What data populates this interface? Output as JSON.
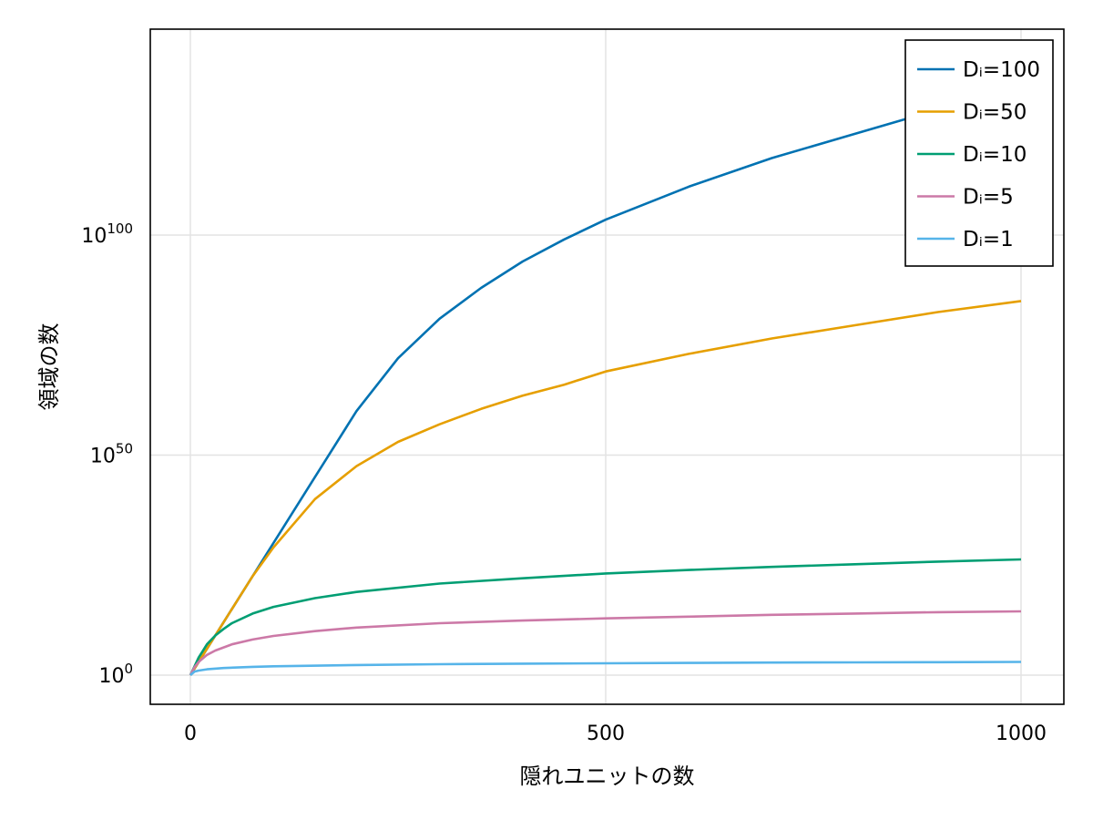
{
  "chart_data": {
    "type": "line",
    "xlabel": "隠れユニットの数",
    "ylabel": "領域の数",
    "xlim": [
      0,
      1000
    ],
    "ylim_exponent": [
      -6.5,
      147
    ],
    "y_scale": "log10",
    "grid": true,
    "legend_position": "top-right",
    "x_ticks": [
      {
        "value": 0,
        "label": "0"
      },
      {
        "value": 500,
        "label": "500"
      },
      {
        "value": 1000,
        "label": "1000"
      }
    ],
    "y_ticks": [
      {
        "exponent": 0,
        "base": "10",
        "sup": "0"
      },
      {
        "exponent": 50,
        "base": "10",
        "sup": "50"
      },
      {
        "exponent": 100,
        "base": "10",
        "sup": "100"
      }
    ],
    "series": [
      {
        "name": "Dᵢ=100",
        "color": "#0072b2",
        "x": [
          0,
          25,
          50,
          75,
          100,
          150,
          200,
          250,
          300,
          350,
          400,
          450,
          500,
          600,
          700,
          800,
          900,
          1000
        ],
        "log10_y": [
          0,
          7.5,
          15,
          22.5,
          30,
          45,
          60,
          72,
          81,
          88,
          94,
          99,
          103.5,
          111,
          117.5,
          123,
          128.5,
          133.5
        ]
      },
      {
        "name": "Dᵢ=50",
        "color": "#e69f00",
        "x": [
          0,
          25,
          50,
          75,
          100,
          150,
          200,
          250,
          300,
          350,
          400,
          450,
          500,
          600,
          700,
          800,
          900,
          1000
        ],
        "log10_y": [
          0,
          7.5,
          15,
          22.5,
          29,
          40,
          47.5,
          53,
          57,
          60.5,
          63.5,
          66,
          69,
          73,
          76.5,
          79.5,
          82.5,
          85
        ]
      },
      {
        "name": "Dᵢ=10",
        "color": "#009e73",
        "x": [
          0,
          5,
          10,
          15,
          20,
          30,
          40,
          50,
          75,
          100,
          150,
          200,
          300,
          400,
          500,
          600,
          700,
          800,
          900,
          1000
        ],
        "log10_y": [
          0,
          2,
          4,
          5.5,
          7,
          9,
          10.5,
          11.8,
          14,
          15.5,
          17.5,
          18.9,
          20.8,
          22,
          23.1,
          23.9,
          24.6,
          25.2,
          25.8,
          26.3
        ]
      },
      {
        "name": "Dᵢ=5",
        "color": "#cc79a7",
        "x": [
          0,
          5,
          10,
          20,
          30,
          50,
          75,
          100,
          150,
          200,
          300,
          400,
          500,
          600,
          700,
          800,
          900,
          1000
        ],
        "log10_y": [
          0,
          1.8,
          3,
          4.6,
          5.6,
          7,
          8.1,
          8.9,
          10,
          10.8,
          11.8,
          12.4,
          12.9,
          13.3,
          13.7,
          14,
          14.3,
          14.5
        ]
      },
      {
        "name": "Dᵢ=1",
        "color": "#56b4e9",
        "x": [
          0,
          5,
          10,
          20,
          40,
          75,
          100,
          200,
          300,
          400,
          500,
          600,
          700,
          800,
          900,
          1000
        ],
        "log10_y": [
          0,
          0.8,
          1.04,
          1.32,
          1.61,
          1.88,
          2.0,
          2.3,
          2.48,
          2.6,
          2.7,
          2.78,
          2.85,
          2.9,
          2.95,
          3.0
        ]
      }
    ]
  }
}
